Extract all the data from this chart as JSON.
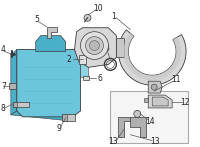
{
  "bg_color": "#ffffff",
  "egr_blue": "#6bc5db",
  "egr_blue_dark": "#4aafc8",
  "egr_blue_light": "#8dd4e4",
  "part_gray": "#c8c8c8",
  "part_gray2": "#b0b0b0",
  "part_gray3": "#d8d8d8",
  "line_color": "#3a3a3a",
  "leader_color": "#555555",
  "box_border": "#aaaaaa",
  "label_color": "#222222",
  "label_fs": 5.5
}
